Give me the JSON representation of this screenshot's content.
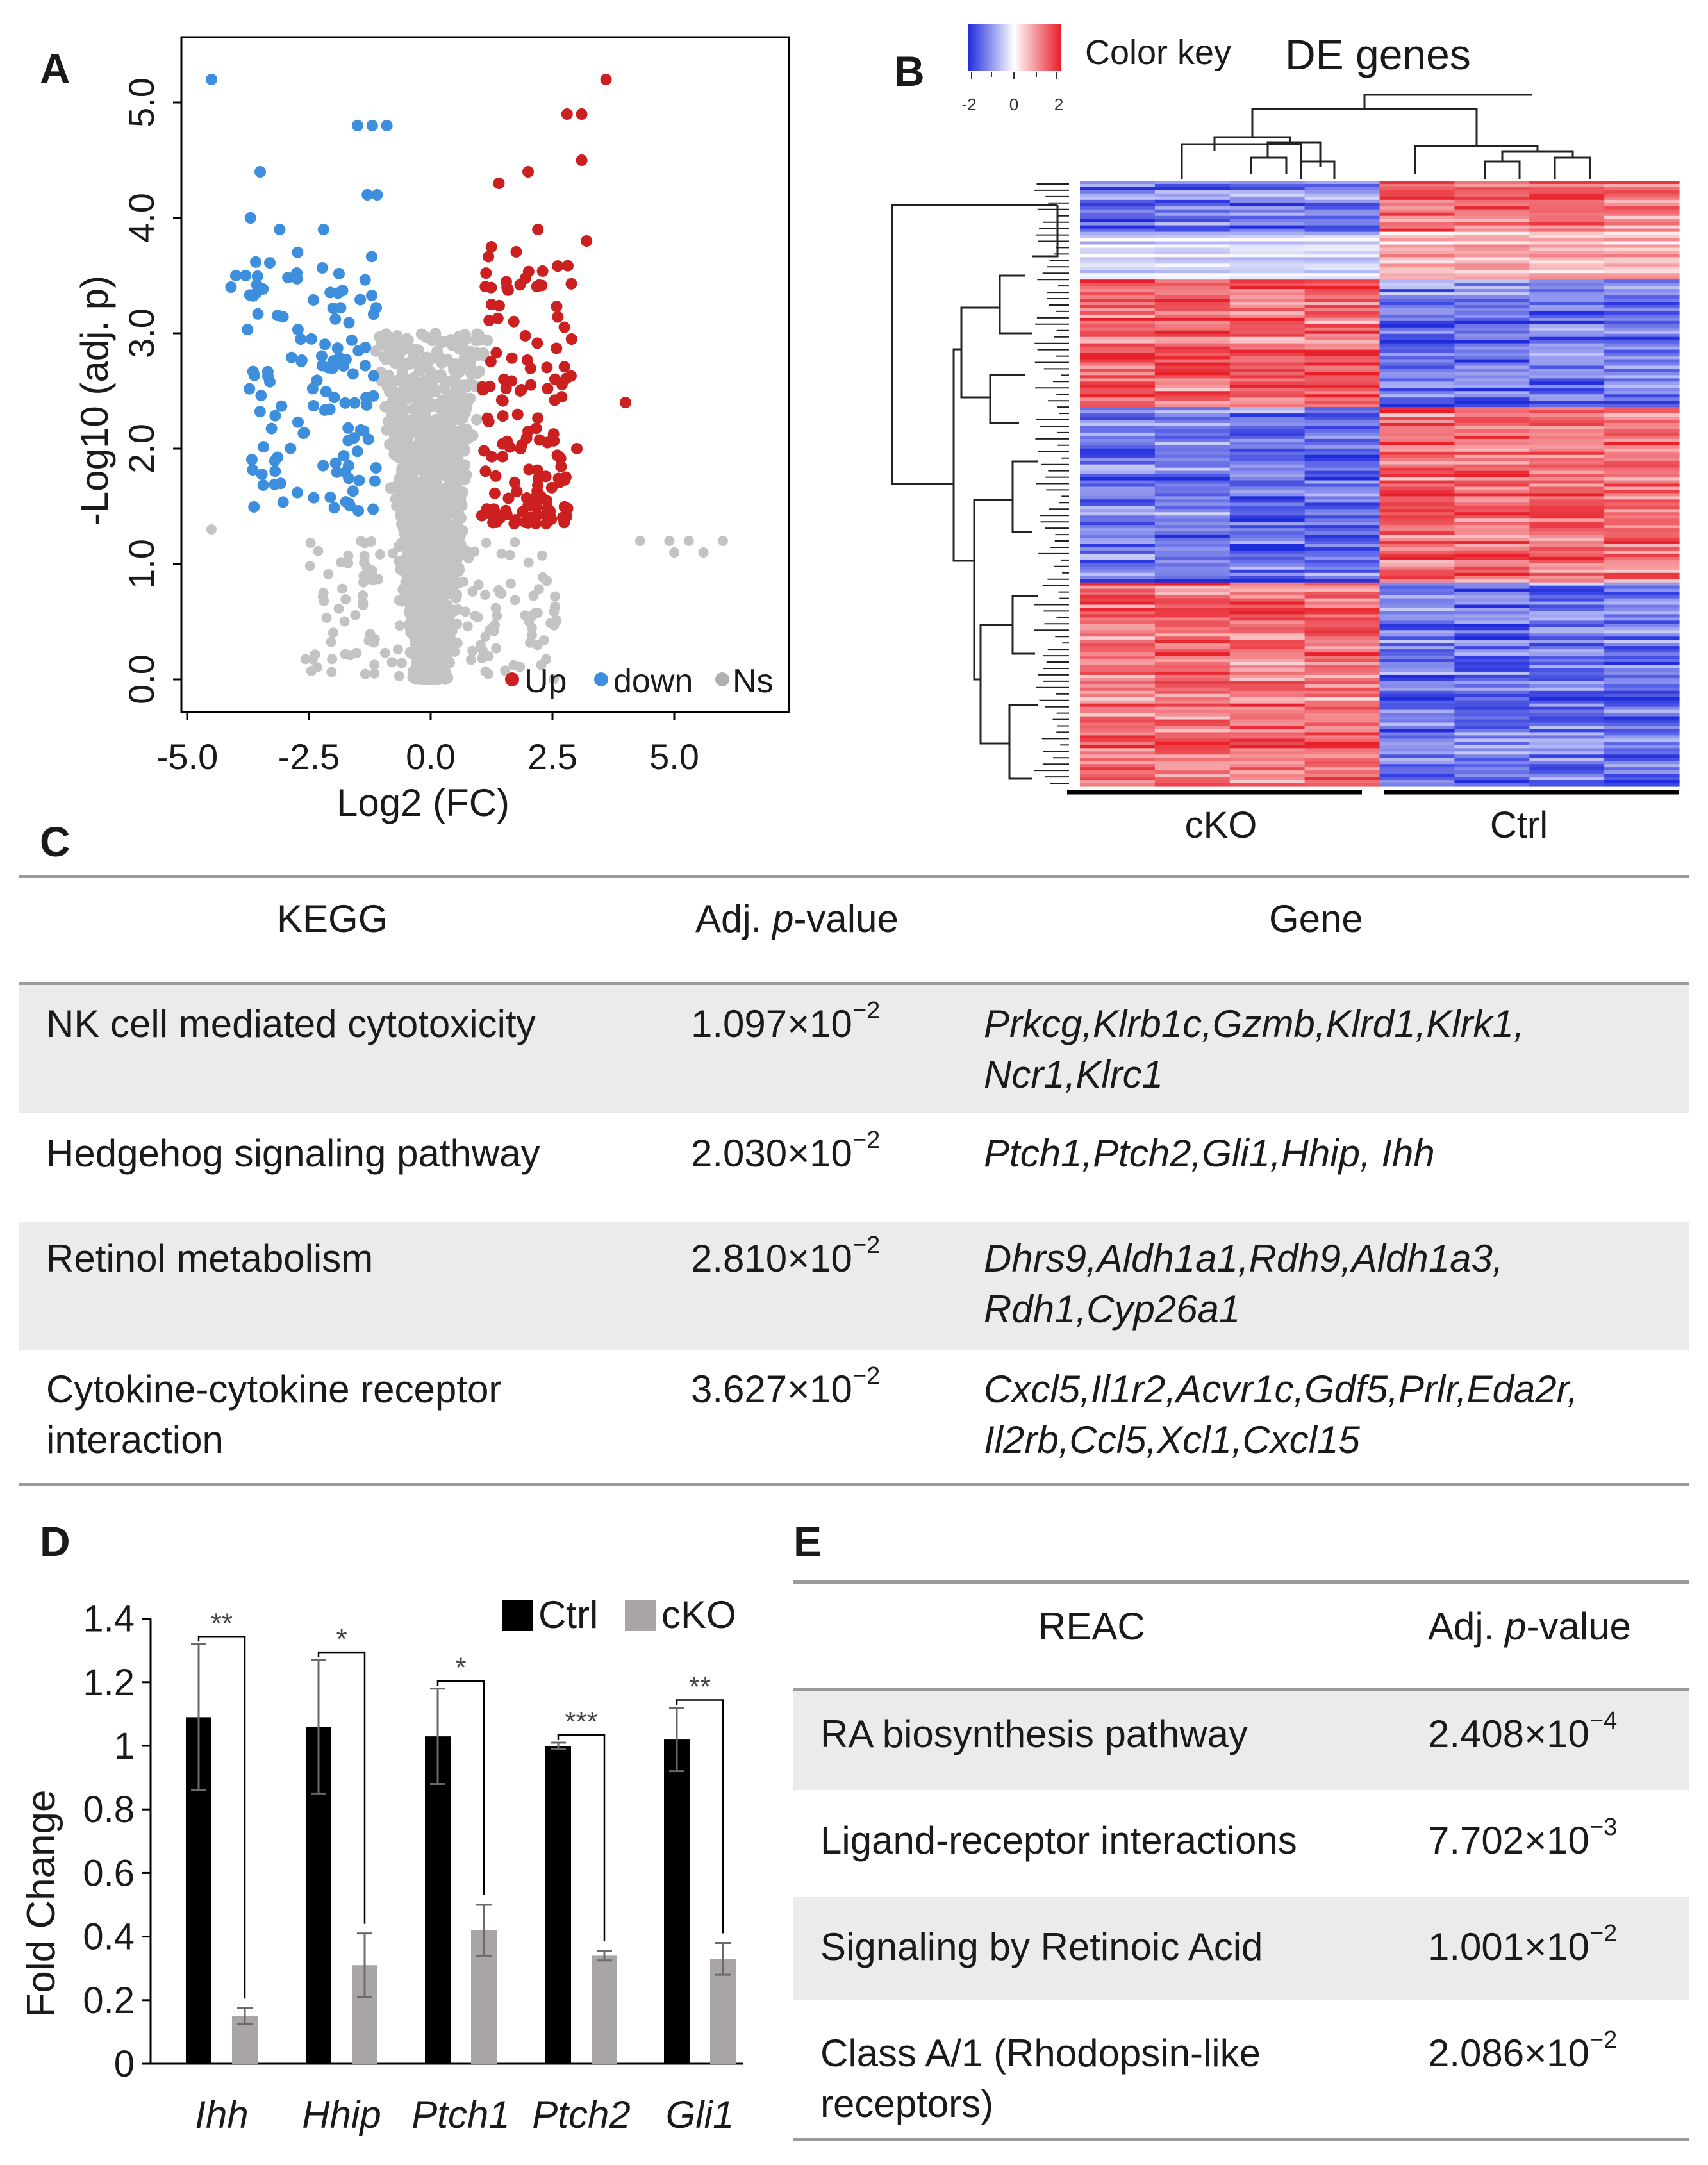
{
  "panels": {
    "a": "A",
    "b": "B",
    "c": "C",
    "d": "D",
    "e": "E"
  },
  "volcano": {
    "xlabel": "Log2 (FC)",
    "ylabel": "-Log10 (adj. p)",
    "x_ticks": [
      "-5.0",
      "-2.5",
      "0.0",
      "2.5",
      "5.0"
    ],
    "y_ticks": [
      "0.0",
      "1.0",
      "2.0",
      "3.0",
      "4.0",
      "5.0"
    ],
    "legend": {
      "up": "Up",
      "down": "down",
      "ns": "Ns"
    },
    "colors": {
      "up": "#cc1f1f",
      "down": "#3d8fdd",
      "ns": "#c3c3c3"
    }
  },
  "heatmap": {
    "title": "DE genes",
    "color_key": "Color key",
    "key_ticks": [
      "-2",
      "0",
      "2"
    ],
    "groups": [
      "cKO",
      "Ctrl"
    ],
    "colors": {
      "low": "#1f2bdc",
      "mid": "#ffffff",
      "high": "#e8202a"
    }
  },
  "kegg": {
    "headers": [
      "KEGG",
      "Adj.",
      "p",
      "-value",
      "Gene"
    ],
    "rows": [
      {
        "term": [
          "NK cell mediated cytotoxicity"
        ],
        "mant": "1.097×10",
        "exp": "−2",
        "genes": [
          "Prkcg,Klrb1c,Gzmb,Klrd1,Klrk1,",
          "Ncr1,Klrc1"
        ]
      },
      {
        "term": [
          "Hedgehog signaling pathway"
        ],
        "mant": "2.030×10",
        "exp": "−2",
        "genes": [
          "Ptch1,Ptch2,Gli1,Hhip, Ihh"
        ]
      },
      {
        "term": [
          "Retinol metabolism"
        ],
        "mant": "2.810×10",
        "exp": "−2",
        "genes": [
          "Dhrs9,Aldh1a1,Rdh9,Aldh1a3,",
          "Rdh1,Cyp26a1"
        ]
      },
      {
        "term": [
          "Cytokine-cytokine receptor",
          "interaction"
        ],
        "mant": "3.627×10",
        "exp": "−2",
        "genes": [
          "Cxcl5,Il1r2,Acvr1c,Gdf5,Prlr,Eda2r,",
          "Il2rb,Ccl5,Xcl1,Cxcl15"
        ]
      }
    ]
  },
  "chart_data": {
    "type": "bar",
    "ylabel": "Fold Change",
    "ylim": [
      0,
      1.4
    ],
    "y_ticks": [
      "0",
      "0.2",
      "0.4",
      "0.6",
      "0.8",
      "1",
      "1.2",
      "1.4"
    ],
    "categories": [
      "Ihh",
      "Hhip",
      "Ptch1",
      "Ptch2",
      "Gli1"
    ],
    "series": [
      {
        "name": "Ctrl",
        "color": "#000000",
        "values": [
          1.09,
          1.06,
          1.03,
          1.0,
          1.02
        ],
        "errors": [
          0.23,
          0.21,
          0.15,
          0.01,
          0.1
        ]
      },
      {
        "name": "cKO",
        "color": "#aaa5a5",
        "values": [
          0.15,
          0.31,
          0.42,
          0.34,
          0.33
        ],
        "errors": [
          0.025,
          0.1,
          0.08,
          0.015,
          0.05
        ]
      }
    ],
    "significance": [
      "**",
      "*",
      "*",
      "***",
      "**"
    ],
    "legend": "top-right"
  },
  "reac": {
    "headers": [
      "REAC",
      "Adj.",
      "p",
      "-value"
    ],
    "rows": [
      {
        "term": [
          "RA biosynthesis pathway"
        ],
        "mant": "2.408×10",
        "exp": "−4"
      },
      {
        "term": [
          "Ligand-receptor interactions"
        ],
        "mant": "7.702×10",
        "exp": "−3"
      },
      {
        "term": [
          "Signaling by Retinoic Acid"
        ],
        "mant": "1.001×10",
        "exp": "−2"
      },
      {
        "term": [
          "Class A/1 (Rhodopsin-like",
          "receptors)"
        ],
        "mant": "2.086×10",
        "exp": "−2"
      }
    ]
  }
}
